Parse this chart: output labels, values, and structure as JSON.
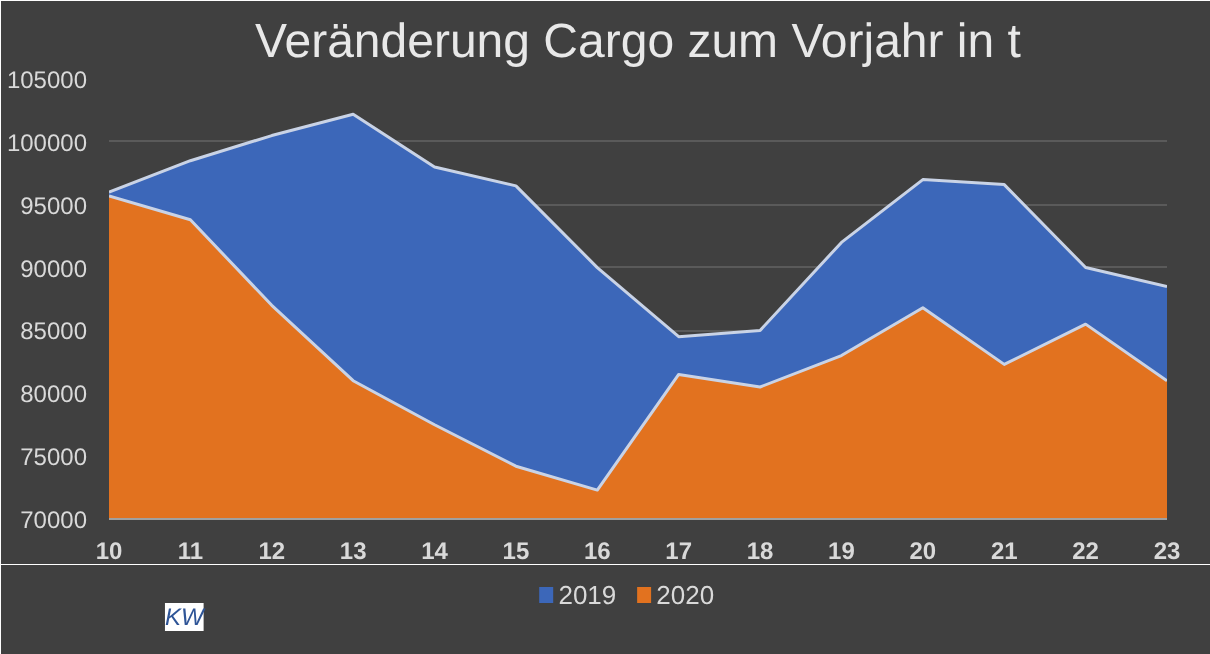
{
  "chart_data": {
    "type": "area",
    "title": "Veränderung Cargo zum Vorjahr in t",
    "xlabel": "KW",
    "categories": [
      "10",
      "11",
      "12",
      "13",
      "14",
      "15",
      "16",
      "17",
      "18",
      "19",
      "20",
      "21",
      "22",
      "23"
    ],
    "series": [
      {
        "name": "2019",
        "color": "#3c67b9",
        "values": [
          96000,
          98500,
          100500,
          102200,
          98000,
          96500,
          90000,
          84500,
          85000,
          92000,
          97000,
          96600,
          90000,
          88500
        ]
      },
      {
        "name": "2020",
        "color": "#e2721f",
        "values": [
          95700,
          93800,
          87000,
          81000,
          77500,
          74200,
          72300,
          81500,
          80500,
          83000,
          86800,
          82300,
          85500,
          81000
        ]
      }
    ],
    "ylim": [
      70000,
      105000
    ],
    "yticks": [
      70000,
      75000,
      80000,
      85000,
      90000,
      95000,
      100000,
      105000
    ],
    "grid": "y",
    "legend": "bottom"
  }
}
